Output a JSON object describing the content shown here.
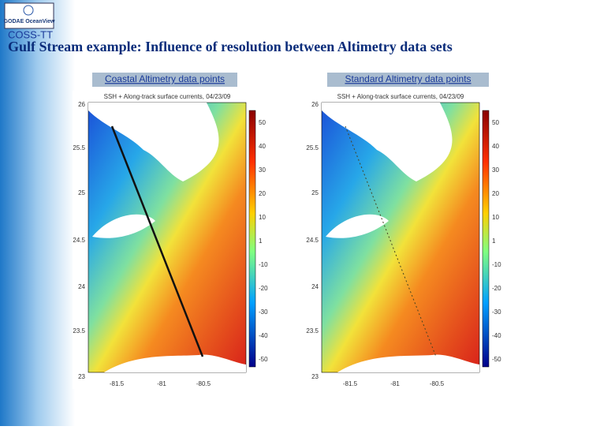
{
  "logo": "GODAE OceanView",
  "program": "COSS-TT",
  "title": "Gulf Stream example: Influence of resolution between Altimetry data sets",
  "panels": [
    {
      "caption": "Coastal Altimetry data points",
      "plot_title": "SSH + Along-track surface currents, 04/23/09",
      "yticks": [
        26,
        25.5,
        25,
        24.5,
        24,
        23.5,
        23
      ],
      "xticks": [
        -81.5,
        -81,
        -80.5
      ],
      "colorbar_ticks": [
        50,
        40,
        30,
        20,
        10,
        1,
        -10,
        -20,
        -30,
        -40,
        -50
      ]
    },
    {
      "caption": "Standard Altimetry data points",
      "plot_title": "SSH + Along-track surface currents, 04/23/09",
      "yticks": [
        26,
        25.5,
        25,
        24.5,
        24,
        23.5,
        23
      ],
      "xticks": [
        -81.5,
        -81,
        -80.5
      ],
      "colorbar_ticks": [
        50,
        40,
        30,
        20,
        10,
        1,
        -10,
        -20,
        -30,
        -40,
        -50
      ]
    }
  ]
}
